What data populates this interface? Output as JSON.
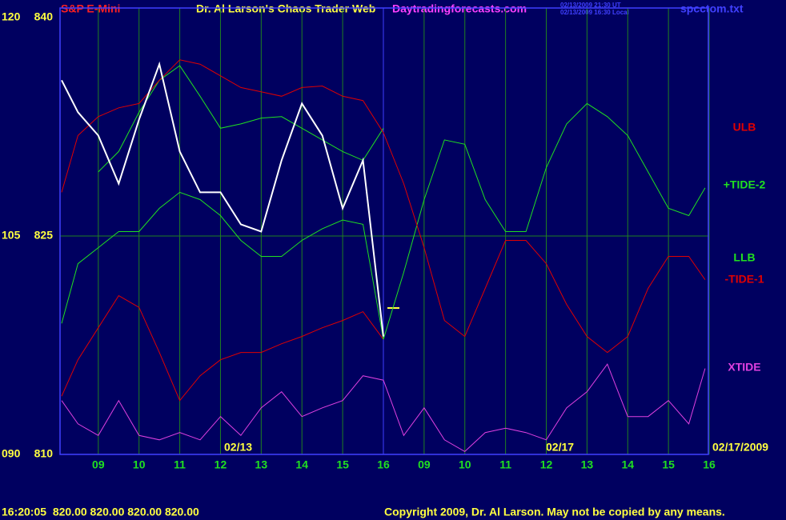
{
  "chart_data": {
    "type": "line",
    "title": "S&P E-Mini",
    "subtitle": "Dr. Al Larson's Chaos Trader Web",
    "site": "Daytradingforecasts.com",
    "timestamps": [
      "02/13/2009 21:30 UT",
      "02/13/2009 16:30 Local"
    ],
    "file": "spcctom.txt",
    "date_labels": [
      "02/13",
      "02/17",
      "02/17/2009"
    ],
    "status": "16:20:05  820.00 820.00 820.00 820.00",
    "copyright": "Copyright 2009, Dr. Al Larson. May not be copied by any means.",
    "categories": [
      "09",
      "10",
      "11",
      "12",
      "13",
      "14",
      "15",
      "16",
      "09",
      "10",
      "11",
      "12",
      "13",
      "14",
      "15",
      "16"
    ],
    "current_index": 7,
    "xlim": [
      -0.94,
      14.98
    ],
    "ylim": [
      810,
      840
    ],
    "yticks": [
      840,
      825,
      810
    ],
    "y2lim": [
      90,
      120
    ],
    "y2ticks": [
      120,
      105,
      {
        "value": 90,
        "label": "090"
      }
    ],
    "x": [
      -0.9,
      -0.5,
      0,
      0.5,
      1,
      1.5,
      2,
      2.5,
      3,
      3.5,
      4,
      4.5,
      5,
      5.5,
      6,
      6.5,
      7,
      7.5,
      8,
      8.5,
      9,
      9.5,
      10,
      10.5,
      11,
      11.5,
      12,
      12.5,
      13,
      13.5,
      14,
      14.5,
      14.9
    ],
    "series": [
      {
        "name": "ULB",
        "color": "#e00000",
        "values": [
          814.0,
          816.5,
          818.7,
          820.9,
          820.1,
          817.0,
          813.7,
          815.4,
          816.5,
          817.0,
          817.0,
          817.6,
          818.1,
          818.7,
          819.2,
          819.8,
          817.9,
          null,
          null,
          null,
          null,
          null,
          null,
          null,
          null,
          null,
          null,
          null,
          null,
          null,
          null,
          null,
          null
        ]
      },
      {
        "name": "+TIDE-2",
        "color": "#20e020",
        "values": [
          819.0,
          823.1,
          824.2,
          825.3,
          825.3,
          826.9,
          828.0,
          827.5,
          826.4,
          824.7,
          823.6,
          823.6,
          824.7,
          825.5,
          826.1,
          825.8,
          817.9,
          822.5,
          827.5,
          831.6,
          831.3,
          827.5,
          825.3,
          825.3,
          829.7,
          832.7,
          834.1,
          833.2,
          831.9,
          829.4,
          826.9,
          826.4,
          828.3
        ]
      },
      {
        "name": "LLB",
        "color": "#20e020",
        "values": [
          null,
          null,
          829.4,
          830.8,
          833.5,
          835.7,
          836.7,
          834.6,
          832.4,
          832.7,
          833.1,
          833.2,
          832.4,
          831.6,
          830.8,
          830.2,
          832.4,
          null,
          null,
          null,
          null,
          null,
          null,
          null,
          null,
          null,
          null,
          null,
          null,
          null,
          null,
          null,
          null
        ]
      },
      {
        "name": "-TIDE-1",
        "color": "#e00000",
        "values": [
          828.0,
          831.9,
          833.2,
          833.8,
          834.1,
          835.7,
          837.1,
          836.8,
          836.0,
          835.2,
          834.9,
          834.6,
          835.2,
          835.3,
          834.6,
          834.3,
          832.1,
          828.6,
          824.2,
          819.2,
          818.1,
          821.4,
          824.7,
          824.7,
          823.1,
          820.3,
          818.1,
          817.0,
          818.1,
          821.4,
          823.6,
          823.6,
          822.0
        ]
      },
      {
        "name": "XTIDE",
        "color": "#e040e0",
        "values": [
          813.7,
          812.1,
          811.3,
          813.7,
          811.3,
          811.0,
          811.5,
          811.0,
          812.6,
          811.3,
          813.2,
          814.3,
          812.6,
          813.2,
          813.7,
          815.4,
          815.1,
          811.3,
          813.2,
          811.0,
          810.2,
          811.5,
          811.8,
          811.5,
          811.0,
          813.2,
          814.3,
          816.2,
          812.6,
          812.6,
          813.7,
          812.1,
          815.9
        ]
      },
      {
        "color": "#ffffff",
        "values": [
          835.7,
          833.5,
          831.9,
          828.6,
          833.0,
          836.8,
          830.8,
          828.0,
          828.0,
          825.8,
          825.3,
          830.2,
          834.1,
          831.9,
          826.9,
          830.2,
          818.1,
          null,
          null,
          null,
          null,
          null,
          null,
          null,
          null,
          null,
          null,
          null,
          null,
          null,
          null,
          null,
          null
        ]
      }
    ]
  }
}
